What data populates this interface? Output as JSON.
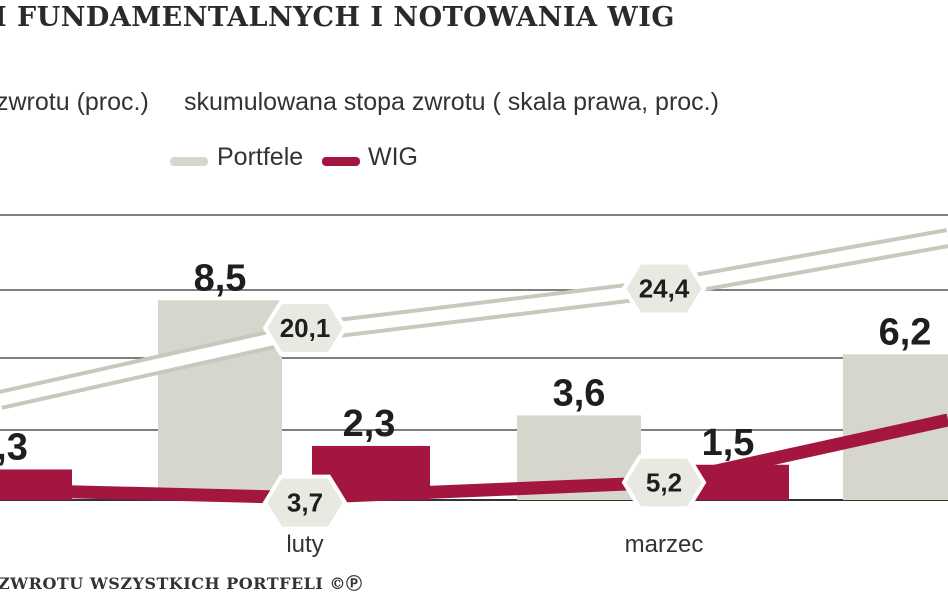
{
  "title": "I FUNDAMENTALNYCH I NOTOWANIA WIG",
  "subtitle_left": "zwrotu (proc.)",
  "subtitle_right": "skumulowana stopa zwrotu ( skala prawa, proc.)",
  "legend": [
    {
      "name": "Portfele",
      "color": "#d6d6cc"
    },
    {
      "name": "WIG",
      "color": "#a3163f"
    }
  ],
  "footer": "ZWROTU WSZYSTKICH PORTFELI ©Ⓟ",
  "chart_data": {
    "type": "bar",
    "categories": [
      "",
      "luty",
      "marzec",
      ""
    ],
    "series": [
      {
        "name": "Portfele",
        "type": "bar",
        "values": [
          null,
          8.5,
          3.6,
          6.2
        ],
        "labels": [
          "",
          "8,5",
          "3,6",
          "6,2"
        ]
      },
      {
        "name": "WIG",
        "type": "bar",
        "values": [
          1.3,
          2.3,
          1.5,
          null
        ],
        "labels": [
          ",3",
          "2,3",
          "1,5",
          ""
        ]
      },
      {
        "name": "Portfele",
        "type": "line",
        "values": [
          null,
          20.1,
          24.4,
          null
        ],
        "labels": [
          "",
          "20,1",
          "24,4",
          ""
        ]
      },
      {
        "name": "WIG",
        "type": "line",
        "values": [
          null,
          3.7,
          5.2,
          null
        ],
        "labels": [
          "",
          "3,7",
          "5,2",
          ""
        ]
      }
    ]
  }
}
